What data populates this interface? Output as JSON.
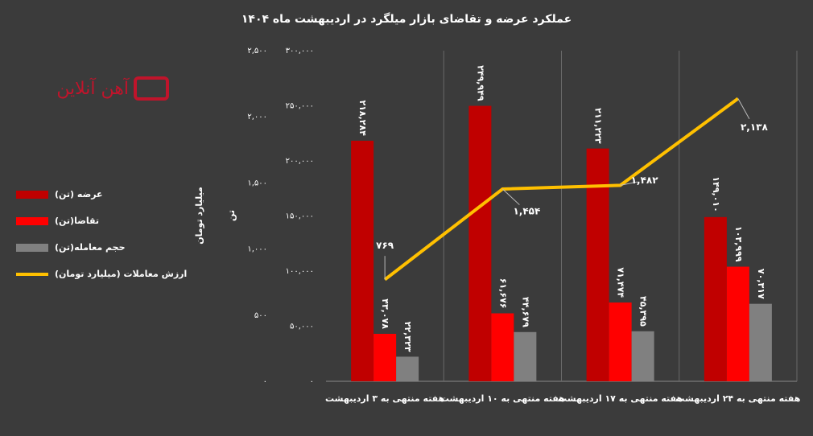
{
  "logo": "آهن آنلاین",
  "chart_data": {
    "type": "bar",
    "title": "عملکرد عرضه و تقاضای بازار میلگرد در اردیبهشت ماه ۱۴۰۴",
    "y_label": "تن",
    "y2_label": "میلیارد تومان",
    "categories": [
      "هفته منتهی به ۳ اردیبهشت",
      "هفته منتهی به ۱۰ اردیبهشت",
      "هفته منتهی به ۱۷ اردیبهشت",
      "هفته منتهی به ۲۴ اردیبهشت"
    ],
    "series": [
      {
        "name": "عرضه (تن)",
        "color": "#c00000",
        "values": [
          218284,
          249949,
          211223,
          149010
        ],
        "value_labels": [
          "۲۱۸,۲۸۴",
          "۲۴۹,۹۴۹",
          "۲۱۱,۲۲۳",
          "۱۴۹,۰۱۰"
        ]
      },
      {
        "name": "تقاضا(تن)",
        "color": "#ff0000",
        "values": [
          43078,
          61676,
          71474,
          103999
        ],
        "value_labels": [
          "۴۳,۰۷۸",
          "۶۱,۶۷۶",
          "۷۱,۴۷۴",
          "۱۰۳,۹۹۹"
        ]
      },
      {
        "name": "حجم معامله(تن)",
        "color": "#808080",
        "values": [
          22323,
          44679,
          45395,
          70317
        ],
        "value_labels": [
          "۲۲,۳۲۳",
          "۴۴,۶۷۹",
          "۴۵,۳۹۵",
          "۷۰,۳۱۷"
        ]
      },
      {
        "name": "ارزش معاملات (میلیارد تومان)",
        "color": "#ffc000",
        "type": "line",
        "axis": "y2",
        "values": [
          769,
          1454,
          1482,
          2138
        ],
        "value_labels": [
          "۷۶۹",
          "۱,۴۵۴",
          "۱,۴۸۲",
          "۲,۱۳۸"
        ]
      }
    ],
    "ylim": [
      0,
      300000
    ],
    "yticks": [
      {
        "value": 0,
        "label": "۰"
      },
      {
        "value": 50000,
        "label": "۵۰,۰۰۰"
      },
      {
        "value": 100000,
        "label": "۱۰۰,۰۰۰"
      },
      {
        "value": 150000,
        "label": "۱۵۰,۰۰۰"
      },
      {
        "value": 200000,
        "label": "۲۰۰,۰۰۰"
      },
      {
        "value": 250000,
        "label": "۲۵۰,۰۰۰"
      },
      {
        "value": 300000,
        "label": "۳۰۰,۰۰۰"
      }
    ],
    "y2lim": [
      0,
      2500
    ],
    "y2ticks": [
      {
        "value": 0,
        "label": "۰"
      },
      {
        "value": 500,
        "label": "۵۰۰"
      },
      {
        "value": 1000,
        "label": "۱,۰۰۰"
      },
      {
        "value": 1500,
        "label": "۱,۵۰۰"
      },
      {
        "value": 2000,
        "label": "۲,۰۰۰"
      },
      {
        "value": 2500,
        "label": "۲,۵۰۰"
      }
    ],
    "legend": "left"
  }
}
